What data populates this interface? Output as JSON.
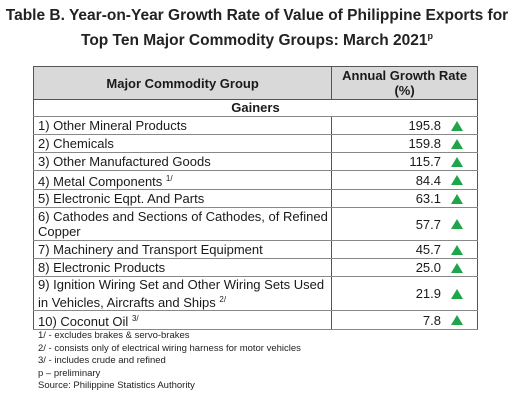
{
  "title": {
    "line1": "Table B. Year-on-Year Growth Rate of Value of Philippine Exports for",
    "line2": "Top Ten Major Commodity Groups: March 2021",
    "superscript": "p"
  },
  "table": {
    "header": {
      "col1": "Major Commodity Group",
      "col2": "Annual Growth Rate (%)"
    },
    "section_label": "Gainers",
    "trend_color": "#1fa64a",
    "trend_icon": "up-triangle-icon",
    "rows": [
      {
        "name": "1)  Other Mineral Products",
        "note": "",
        "value": "195.8"
      },
      {
        "name": "2)  Chemicals",
        "note": "",
        "value": "159.8"
      },
      {
        "name": "3)  Other Manufactured Goods",
        "note": "",
        "value": "115.7"
      },
      {
        "name": "4)  Metal Components",
        "note": "1/",
        "value": "84.4"
      },
      {
        "name": "5)  Electronic Eqpt. And Parts",
        "note": "",
        "value": "63.1"
      },
      {
        "name": "6)  Cathodes and Sections of Cathodes, of Refined Copper",
        "note": "",
        "value": "57.7"
      },
      {
        "name": "7)  Machinery and Transport Equipment",
        "note": "",
        "value": "45.7"
      },
      {
        "name": "8)  Electronic Products",
        "note": "",
        "value": "25.0"
      },
      {
        "name": "9)  Ignition Wiring Set and Other Wiring Sets Used in Vehicles, Aircrafts and Ships",
        "note": "2/",
        "value": "21.9"
      },
      {
        "name": "10) Coconut Oil",
        "note": "3/",
        "value": "7.8"
      }
    ]
  },
  "footnotes": [
    "1/ -  excludes brakes & servo-brakes",
    "2/ -  consists only of electrical wiring harness for motor vehicles",
    "3/ -  includes crude and refined",
    "p – preliminary",
    "Source:  Philippine Statistics Authority"
  ]
}
